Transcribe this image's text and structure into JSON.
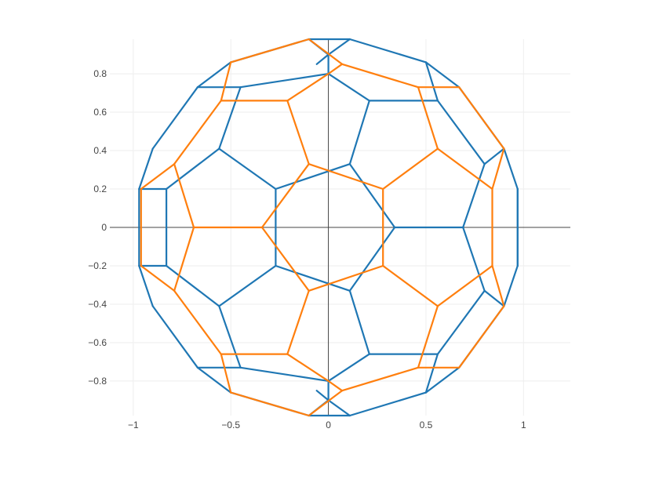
{
  "chart_data": {
    "type": "line",
    "title": "",
    "xlabel": "",
    "ylabel": "",
    "xlim": [
      -1.12,
      1.24
    ],
    "ylim": [
      -0.98,
      0.98
    ],
    "x_ticks": [
      {
        "value": -1,
        "label": "−1"
      },
      {
        "value": -0.5,
        "label": "−0.5"
      },
      {
        "value": 0,
        "label": "0"
      },
      {
        "value": 0.5,
        "label": "0.5"
      },
      {
        "value": 1,
        "label": "1"
      }
    ],
    "y_ticks": [
      {
        "value": -0.8,
        "label": "−0.8"
      },
      {
        "value": -0.6,
        "label": "−0.6"
      },
      {
        "value": -0.4,
        "label": "−0.4"
      },
      {
        "value": -0.2,
        "label": "−0.2"
      },
      {
        "value": 0,
        "label": "0"
      },
      {
        "value": 0.2,
        "label": "0.2"
      },
      {
        "value": 0.4,
        "label": "0.4"
      },
      {
        "value": 0.6,
        "label": "0.6"
      },
      {
        "value": 0.8,
        "label": "0.8"
      }
    ],
    "grid": true,
    "zero_lines": true,
    "series": [
      {
        "color": "#1f77b4",
        "segments": [
          [
            [
              -0.1,
              0.98
            ],
            [
              0.11,
              0.98
            ]
          ],
          [
            [
              0.11,
              0.98
            ],
            [
              0.5,
              0.86
            ]
          ],
          [
            [
              0.5,
              0.86
            ],
            [
              0.67,
              0.73
            ]
          ],
          [
            [
              0.67,
              0.73
            ],
            [
              0.9,
              0.41
            ]
          ],
          [
            [
              0.9,
              0.41
            ],
            [
              0.97,
              0.2
            ]
          ],
          [
            [
              0.97,
              0.2
            ],
            [
              0.97,
              -0.2
            ]
          ],
          [
            [
              0.97,
              -0.2
            ],
            [
              0.9,
              -0.41
            ]
          ],
          [
            [
              0.9,
              -0.41
            ],
            [
              0.67,
              -0.73
            ]
          ],
          [
            [
              0.67,
              -0.73
            ],
            [
              0.5,
              -0.86
            ]
          ],
          [
            [
              0.5,
              -0.86
            ],
            [
              0.11,
              -0.98
            ]
          ],
          [
            [
              0.11,
              -0.98
            ],
            [
              -0.1,
              -0.98
            ]
          ],
          [
            [
              -0.1,
              -0.98
            ],
            [
              -0.5,
              -0.86
            ]
          ],
          [
            [
              -0.5,
              -0.86
            ],
            [
              -0.67,
              -0.73
            ]
          ],
          [
            [
              -0.67,
              -0.73
            ],
            [
              -0.9,
              -0.41
            ]
          ],
          [
            [
              -0.9,
              -0.41
            ],
            [
              -0.97,
              -0.2
            ]
          ],
          [
            [
              -0.97,
              -0.2
            ],
            [
              -0.97,
              0.2
            ]
          ],
          [
            [
              -0.97,
              0.2
            ],
            [
              -0.9,
              0.41
            ]
          ],
          [
            [
              -0.9,
              0.41
            ],
            [
              -0.67,
              0.73
            ]
          ],
          [
            [
              -0.67,
              0.73
            ],
            [
              -0.5,
              0.86
            ]
          ],
          [
            [
              -0.5,
              0.86
            ],
            [
              -0.1,
              0.98
            ]
          ],
          [
            [
              0.34,
              0
            ],
            [
              0.11,
              -0.33
            ]
          ],
          [
            [
              0.11,
              -0.33
            ],
            [
              -0.27,
              -0.2
            ]
          ],
          [
            [
              -0.27,
              -0.2
            ],
            [
              -0.27,
              0.2
            ]
          ],
          [
            [
              -0.27,
              0.2
            ],
            [
              0.11,
              0.33
            ]
          ],
          [
            [
              0.11,
              0.33
            ],
            [
              0.34,
              0
            ]
          ],
          [
            [
              0.34,
              0
            ],
            [
              0.69,
              0
            ]
          ],
          [
            [
              0.69,
              0
            ],
            [
              0.8,
              0.33
            ]
          ],
          [
            [
              0.8,
              0.33
            ],
            [
              0.56,
              0.66
            ]
          ],
          [
            [
              0.56,
              0.66
            ],
            [
              0.21,
              0.66
            ]
          ],
          [
            [
              0.21,
              0.66
            ],
            [
              0.11,
              0.33
            ]
          ],
          [
            [
              0.69,
              0
            ],
            [
              0.8,
              -0.33
            ]
          ],
          [
            [
              0.8,
              -0.33
            ],
            [
              0.56,
              -0.66
            ]
          ],
          [
            [
              0.56,
              -0.66
            ],
            [
              0.21,
              -0.66
            ]
          ],
          [
            [
              0.21,
              -0.66
            ],
            [
              0.11,
              -0.33
            ]
          ],
          [
            [
              -0.27,
              0.2
            ],
            [
              -0.56,
              0.41
            ]
          ],
          [
            [
              -0.56,
              0.41
            ],
            [
              -0.83,
              0.2
            ]
          ],
          [
            [
              -0.83,
              0.2
            ],
            [
              -0.83,
              -0.2
            ]
          ],
          [
            [
              -0.83,
              -0.2
            ],
            [
              -0.56,
              -0.41
            ]
          ],
          [
            [
              -0.56,
              -0.41
            ],
            [
              -0.27,
              -0.2
            ]
          ],
          [
            [
              0,
              0.8
            ],
            [
              0.21,
              0.66
            ]
          ],
          [
            [
              0,
              0.8
            ],
            [
              -0.45,
              0.73
            ]
          ],
          [
            [
              -0.45,
              0.73
            ],
            [
              -0.56,
              0.41
            ]
          ],
          [
            [
              0,
              -0.8
            ],
            [
              0.21,
              -0.66
            ]
          ],
          [
            [
              0,
              -0.8
            ],
            [
              -0.45,
              -0.73
            ]
          ],
          [
            [
              -0.45,
              -0.73
            ],
            [
              -0.56,
              -0.41
            ]
          ],
          [
            [
              0,
              0.8
            ],
            [
              0,
              0.9
            ]
          ],
          [
            [
              0,
              -0.8
            ],
            [
              0,
              -0.9
            ]
          ],
          [
            [
              0,
              0.9
            ],
            [
              -0.1,
              0.98
            ]
          ],
          [
            [
              0,
              0.9
            ],
            [
              0.11,
              0.98
            ]
          ],
          [
            [
              0,
              0.9
            ],
            [
              -0.06,
              0.85
            ]
          ],
          [
            [
              0,
              -0.9
            ],
            [
              -0.1,
              -0.98
            ]
          ],
          [
            [
              0,
              -0.9
            ],
            [
              0.11,
              -0.98
            ]
          ],
          [
            [
              0,
              -0.9
            ],
            [
              -0.06,
              -0.85
            ]
          ],
          [
            [
              0.5,
              0.86
            ],
            [
              0.56,
              0.66
            ]
          ],
          [
            [
              0.5,
              -0.86
            ],
            [
              0.56,
              -0.66
            ]
          ],
          [
            [
              0.9,
              0.41
            ],
            [
              0.8,
              0.33
            ]
          ],
          [
            [
              0.9,
              -0.41
            ],
            [
              0.8,
              -0.33
            ]
          ],
          [
            [
              -0.67,
              0.73
            ],
            [
              -0.45,
              0.73
            ]
          ],
          [
            [
              -0.67,
              -0.73
            ],
            [
              -0.45,
              -0.73
            ]
          ],
          [
            [
              -0.97,
              0.2
            ],
            [
              -0.83,
              0.2
            ]
          ],
          [
            [
              -0.97,
              -0.2
            ],
            [
              -0.83,
              -0.2
            ]
          ],
          [
            [
              0.97,
              0.2
            ],
            [
              0.97,
              -0.2
            ]
          ]
        ]
      },
      {
        "color": "#ff7f0e",
        "segments": [
          [
            [
              -0.1,
              0.98
            ],
            [
              -0.5,
              0.86
            ]
          ],
          [
            [
              -0.5,
              0.86
            ],
            [
              -0.55,
              0.66
            ]
          ],
          [
            [
              -0.55,
              0.66
            ],
            [
              -0.79,
              0.33
            ]
          ],
          [
            [
              -0.79,
              0.33
            ],
            [
              -0.96,
              0.2
            ]
          ],
          [
            [
              -0.96,
              0.2
            ],
            [
              -0.96,
              -0.2
            ]
          ],
          [
            [
              -0.96,
              -0.2
            ],
            [
              -0.79,
              -0.33
            ]
          ],
          [
            [
              -0.79,
              -0.33
            ],
            [
              -0.55,
              -0.66
            ]
          ],
          [
            [
              -0.55,
              -0.66
            ],
            [
              -0.5,
              -0.86
            ]
          ],
          [
            [
              -0.5,
              -0.86
            ],
            [
              -0.1,
              -0.98
            ]
          ],
          [
            [
              -0.1,
              -0.98
            ],
            [
              0.07,
              -0.85
            ]
          ],
          [
            [
              0.07,
              -0.85
            ],
            [
              0.46,
              -0.73
            ]
          ],
          [
            [
              0.46,
              -0.73
            ],
            [
              0.67,
              -0.73
            ]
          ],
          [
            [
              0.67,
              -0.73
            ],
            [
              0.9,
              -0.41
            ]
          ],
          [
            [
              0.9,
              -0.41
            ],
            [
              0.84,
              -0.2
            ]
          ],
          [
            [
              0.84,
              -0.2
            ],
            [
              0.84,
              0.2
            ]
          ],
          [
            [
              0.84,
              0.2
            ],
            [
              0.9,
              0.41
            ]
          ],
          [
            [
              0.9,
              0.41
            ],
            [
              0.67,
              0.73
            ]
          ],
          [
            [
              0.67,
              0.73
            ],
            [
              0.46,
              0.73
            ]
          ],
          [
            [
              0.46,
              0.73
            ],
            [
              0.07,
              0.85
            ]
          ],
          [
            [
              0.07,
              0.85
            ],
            [
              -0.1,
              0.98
            ]
          ],
          [
            [
              -0.1,
              0.33
            ],
            [
              0.28,
              0.2
            ]
          ],
          [
            [
              0.28,
              0.2
            ],
            [
              0.28,
              -0.2
            ]
          ],
          [
            [
              0.28,
              -0.2
            ],
            [
              -0.1,
              -0.33
            ]
          ],
          [
            [
              -0.1,
              -0.33
            ],
            [
              -0.34,
              0
            ]
          ],
          [
            [
              -0.34,
              0
            ],
            [
              -0.1,
              0.33
            ]
          ],
          [
            [
              -0.1,
              0.33
            ],
            [
              -0.21,
              0.66
            ]
          ],
          [
            [
              -0.21,
              0.66
            ],
            [
              -0.55,
              0.66
            ]
          ],
          [
            [
              -0.21,
              0.66
            ],
            [
              0,
              0.8
            ]
          ],
          [
            [
              0,
              0.8
            ],
            [
              0.07,
              0.85
            ]
          ],
          [
            [
              -0.1,
              -0.33
            ],
            [
              -0.21,
              -0.66
            ]
          ],
          [
            [
              -0.21,
              -0.66
            ],
            [
              -0.55,
              -0.66
            ]
          ],
          [
            [
              -0.21,
              -0.66
            ],
            [
              0,
              -0.8
            ]
          ],
          [
            [
              0,
              -0.8
            ],
            [
              0.07,
              -0.85
            ]
          ],
          [
            [
              -0.34,
              0
            ],
            [
              -0.69,
              0
            ]
          ],
          [
            [
              -0.69,
              0
            ],
            [
              -0.79,
              0.33
            ]
          ],
          [
            [
              -0.69,
              0
            ],
            [
              -0.79,
              -0.33
            ]
          ],
          [
            [
              0.28,
              0.2
            ],
            [
              0.56,
              0.41
            ]
          ],
          [
            [
              0.56,
              0.41
            ],
            [
              0.84,
              0.2
            ]
          ],
          [
            [
              0.56,
              0.41
            ],
            [
              0.46,
              0.73
            ]
          ],
          [
            [
              0.28,
              -0.2
            ],
            [
              0.56,
              -0.41
            ]
          ],
          [
            [
              0.56,
              -0.41
            ],
            [
              0.84,
              -0.2
            ]
          ],
          [
            [
              0.56,
              -0.41
            ],
            [
              0.46,
              -0.73
            ]
          ]
        ]
      }
    ]
  }
}
